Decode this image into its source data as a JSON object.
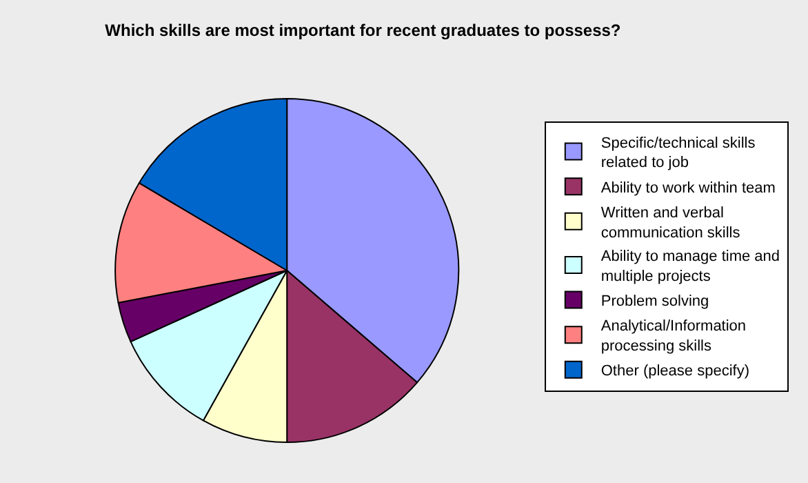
{
  "chart_data": {
    "type": "pie",
    "title": "Which skills are most important for recent graduates to possess?",
    "categories": [
      "Specific/technical skills related to job",
      "Ability to work within team",
      "Written and verbal communication skills",
      "Ability to manage time and multiple projects",
      "Problem solving",
      "Analytical/Information processing skills",
      "Other (please specify)"
    ],
    "values": [
      36.3,
      13.7,
      8.1,
      10.1,
      3.8,
      11.5,
      16.5
    ],
    "colors": [
      "#9999ff",
      "#993366",
      "#ffffcc",
      "#ccffff",
      "#660066",
      "#ff8080",
      "#0066cc"
    ],
    "legend": "right"
  }
}
